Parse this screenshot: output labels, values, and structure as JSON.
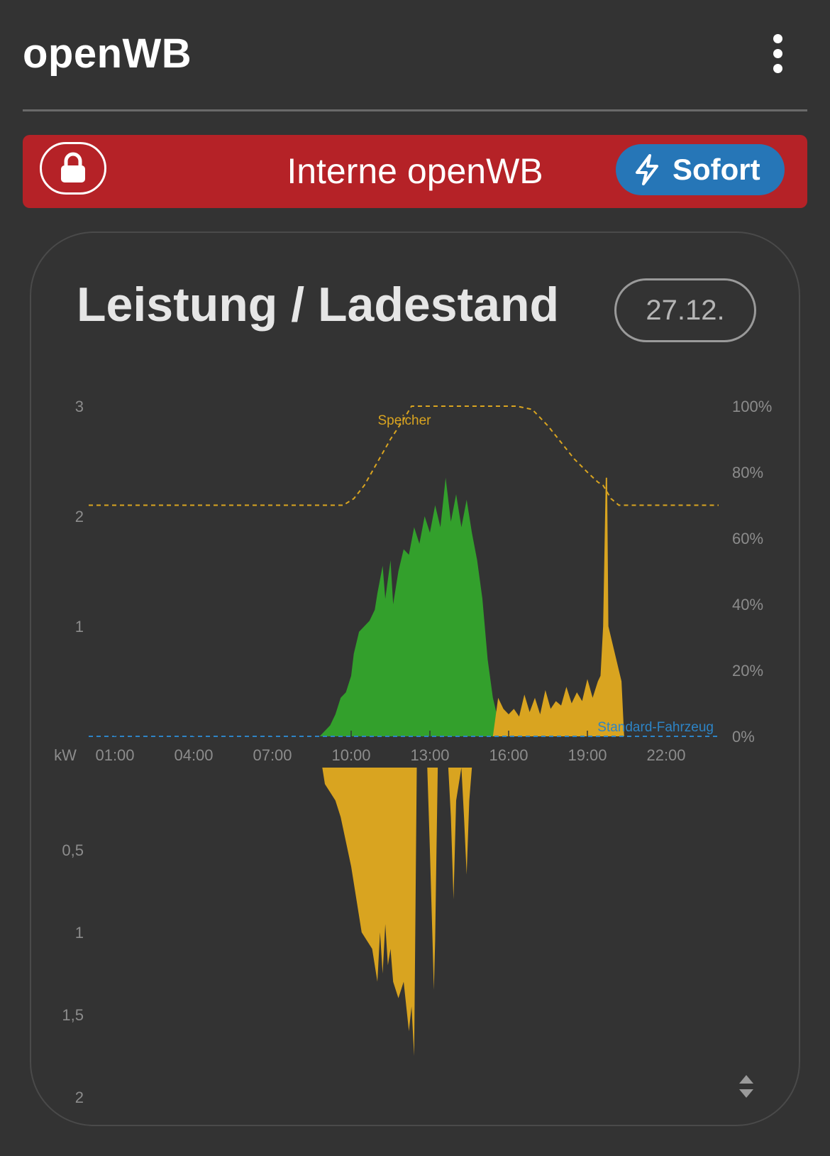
{
  "app": {
    "title": "openWB"
  },
  "chargepoint": {
    "name": "Interne openWB",
    "mode_label": "Sofort",
    "lock_icon": "lock-icon",
    "mode_icon": "bolt-icon"
  },
  "card": {
    "title": "Leistung / Ladestand",
    "date_label": "27.12."
  },
  "colors": {
    "pv": "#33a02c",
    "grid": "#d9a420",
    "soc": "#d9a420",
    "vehicle": "#2d84c6",
    "axis_text": "#8c8c8c"
  },
  "chart_data": [
    {
      "type": "area",
      "title": "",
      "xlabel": "",
      "ylabel": "kW",
      "x_ticks": [
        "01:00",
        "04:00",
        "07:00",
        "10:00",
        "13:00",
        "16:00",
        "19:00",
        "22:00"
      ],
      "x_range": [
        0,
        24
      ],
      "ylim": [
        0,
        3
      ],
      "y_ticks": [
        "1",
        "2",
        "3"
      ],
      "y2lim": [
        0,
        100
      ],
      "y2_ticks": [
        "0%",
        "20%",
        "40%",
        "60%",
        "80%",
        "100%"
      ],
      "grid": false,
      "series": [
        {
          "kind": "area",
          "color_key": "pv",
          "x": [
            0,
            8.8,
            9.0,
            9.2,
            9.4,
            9.6,
            9.8,
            10.0,
            10.1,
            10.3,
            10.5,
            10.7,
            10.9,
            11.0,
            11.2,
            11.3,
            11.5,
            11.6,
            11.8,
            12.0,
            12.2,
            12.4,
            12.6,
            12.8,
            13.0,
            13.2,
            13.4,
            13.6,
            13.8,
            14.0,
            14.2,
            14.4,
            14.6,
            14.8,
            15.0,
            15.2,
            15.4,
            15.6,
            15.8,
            16.0,
            16.2,
            16.5,
            24
          ],
          "y": [
            0,
            0,
            0.05,
            0.1,
            0.2,
            0.35,
            0.4,
            0.55,
            0.75,
            0.95,
            1.0,
            1.05,
            1.15,
            1.3,
            1.55,
            1.25,
            1.6,
            1.2,
            1.5,
            1.7,
            1.65,
            1.9,
            1.75,
            2.0,
            1.85,
            2.1,
            1.9,
            2.35,
            1.95,
            2.2,
            1.9,
            2.15,
            1.85,
            1.6,
            1.25,
            0.7,
            0.35,
            0.15,
            0.05,
            0.02,
            0.01,
            0,
            0
          ]
        },
        {
          "kind": "area",
          "color_key": "grid",
          "x": [
            0,
            15.4,
            15.6,
            15.8,
            16.0,
            16.2,
            16.4,
            16.6,
            16.8,
            17.0,
            17.2,
            17.4,
            17.6,
            17.8,
            18.0,
            18.2,
            18.4,
            18.6,
            18.8,
            19.0,
            19.2,
            19.4,
            19.5,
            19.6,
            19.7,
            19.75,
            19.8,
            19.9,
            20.0,
            20.1,
            20.2,
            20.3,
            20.4,
            24
          ],
          "y": [
            0,
            0,
            0.35,
            0.25,
            0.2,
            0.25,
            0.18,
            0.38,
            0.22,
            0.35,
            0.2,
            0.42,
            0.25,
            0.32,
            0.28,
            0.45,
            0.3,
            0.4,
            0.32,
            0.52,
            0.35,
            0.5,
            0.55,
            1.0,
            2.35,
            2.35,
            1.0,
            0.9,
            0.8,
            0.7,
            0.6,
            0.5,
            0,
            0
          ]
        },
        {
          "kind": "line",
          "name": "Speicher",
          "axis": "right",
          "dashed": true,
          "color_key": "soc",
          "x": [
            0,
            9.7,
            10.1,
            10.5,
            11.0,
            11.5,
            12.0,
            12.3,
            14.0,
            16.3,
            16.9,
            17.5,
            18.0,
            18.5,
            19.0,
            19.4,
            19.6,
            19.9,
            20.2,
            24
          ],
          "y": [
            70,
            70,
            72,
            76,
            83,
            90,
            96,
            100,
            100,
            100,
            99,
            94,
            89,
            84,
            80,
            77,
            76,
            72,
            70,
            70
          ]
        },
        {
          "kind": "line",
          "name": "Standard-Fahrzeug",
          "axis": "right",
          "dashed": true,
          "color_key": "vehicle",
          "x": [
            0,
            24
          ],
          "y": [
            0,
            0
          ]
        }
      ]
    },
    {
      "type": "area",
      "title": "",
      "ylabel": "",
      "ylim": [
        0,
        2
      ],
      "y_ticks": [
        "0,5",
        "1",
        "1,5",
        "2"
      ],
      "inverted": true,
      "series": [
        {
          "kind": "area",
          "color_key": "grid",
          "x": [
            0,
            8.9,
            9.0,
            9.2,
            9.4,
            9.6,
            9.8,
            10.0,
            10.2,
            10.4,
            10.6,
            10.8,
            11.0,
            11.1,
            11.2,
            11.3,
            11.4,
            11.5,
            11.6,
            11.8,
            12.0,
            12.2,
            12.3,
            12.4,
            12.5,
            12.6,
            12.8,
            12.9,
            13.0,
            13.1,
            13.15,
            13.2,
            13.25,
            13.3,
            13.4,
            13.5,
            13.6,
            13.7,
            13.8,
            13.9,
            14.0,
            14.2,
            14.3,
            14.4,
            14.5,
            14.6,
            14.7,
            14.8,
            24
          ],
          "y": [
            0,
            0,
            0.1,
            0.15,
            0.2,
            0.3,
            0.45,
            0.6,
            0.8,
            1.0,
            1.05,
            1.1,
            1.3,
            1.0,
            1.25,
            0.95,
            1.2,
            1.1,
            1.3,
            1.4,
            1.3,
            1.6,
            1.45,
            1.75,
            0,
            0,
            0,
            0,
            0.5,
            1.05,
            1.35,
            1.05,
            0.5,
            0,
            0,
            0,
            0,
            0,
            0.3,
            0.8,
            0.2,
            0,
            0.3,
            0.65,
            0.2,
            0,
            0,
            0,
            0
          ]
        }
      ]
    }
  ]
}
